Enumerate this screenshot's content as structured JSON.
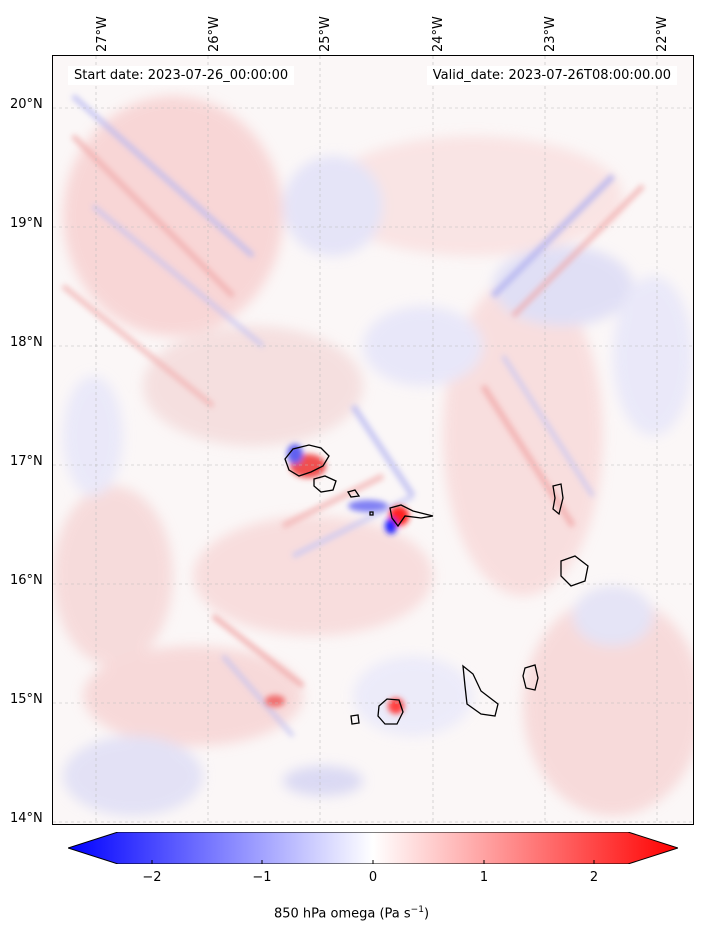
{
  "map": {
    "start_date": "Start date: 2023-07-26_00:00:00",
    "valid_date": "Valid_date: 2023-07-26T08:00:00.00",
    "lon_labels": [
      "27°W",
      "26°W",
      "25°W",
      "24°W",
      "23°W",
      "22°W"
    ],
    "lat_labels": [
      "20°N",
      "19°N",
      "18°N",
      "17°N",
      "16°N",
      "15°N",
      "14°N"
    ],
    "field": "850 hPa omega",
    "colormap": "bwr",
    "gridlines": true
  },
  "colorbar": {
    "ticks": [
      "−2",
      "−1",
      "0",
      "1",
      "2"
    ],
    "tick_values": [
      -2,
      -1,
      0,
      1,
      2
    ],
    "range": [
      -2.5,
      2.5
    ],
    "extend": "both",
    "label_main": "850 hPa omega (Pa s",
    "label_sup": "−1",
    "label_end": ")",
    "colors": {
      "low": "#0000ff",
      "mid": "#ffffff",
      "high": "#ff0000"
    }
  }
}
